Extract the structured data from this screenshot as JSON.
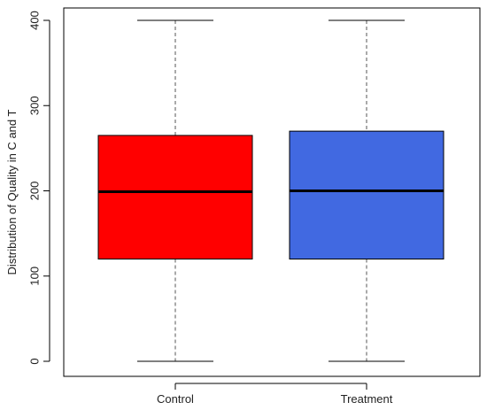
{
  "chart_data": {
    "type": "boxplot",
    "title": "",
    "xlabel": "",
    "ylabel": "Distribution of Quality in C and T",
    "ylim": [
      0,
      400
    ],
    "yticks": [
      0,
      100,
      200,
      300,
      400
    ],
    "grid": false,
    "categories": [
      "Control",
      "Treatment"
    ],
    "boxes": [
      {
        "name": "Control",
        "min": 0,
        "q1": 120,
        "median": 199,
        "q3": 265,
        "max": 400,
        "color": "#ff0000"
      },
      {
        "name": "Treatment",
        "min": 0,
        "q1": 120,
        "median": 200,
        "q3": 270,
        "max": 400,
        "color": "#4169e1"
      }
    ]
  }
}
